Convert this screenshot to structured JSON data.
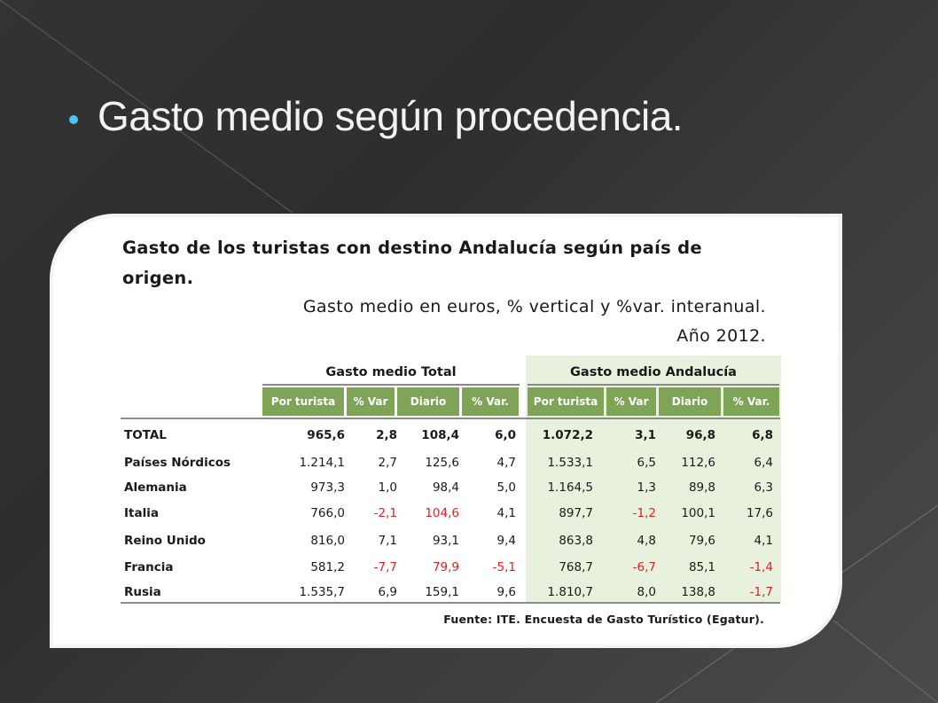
{
  "slide": {
    "bullet_text": "Gasto medio según procedencia.",
    "accent_color": "#4fc3f7"
  },
  "table": {
    "title": "Gasto de los turistas con destino Andalucía según país de origen.",
    "subtitle": "Gasto medio en euros, % vertical y %var. interanual.",
    "year": "Año 2012.",
    "groups": [
      "Gasto medio Total",
      "Gasto medio Andalucía"
    ],
    "columns": [
      "Por turista",
      "% Var",
      "Diario",
      "% Var.",
      "Por turista",
      "% Var",
      "Diario",
      "% Var."
    ],
    "rows": [
      {
        "label": "TOTAL",
        "values": [
          "965,6",
          "2,8",
          "108,4",
          "6,0",
          "1.072,2",
          "3,1",
          "96,8",
          "6,8"
        ]
      },
      {
        "label": "Países Nórdicos",
        "values": [
          "1.214,1",
          "2,7",
          "125,6",
          "4,7",
          "1.533,1",
          "6,5",
          "112,6",
          "6,4"
        ]
      },
      {
        "label": "Alemania",
        "values": [
          "973,3",
          "1,0",
          "98,4",
          "5,0",
          "1.164,5",
          "1,3",
          "89,8",
          "6,3"
        ]
      },
      {
        "label": "Italia",
        "values": [
          "766,0",
          "-2,1",
          "104,6",
          "4,1",
          "897,7",
          "-1,2",
          "100,1",
          "17,6"
        ]
      },
      {
        "label": "Reino Unido",
        "values": [
          "816,0",
          "7,1",
          "93,1",
          "9,4",
          "863,8",
          "4,8",
          "79,6",
          "4,1"
        ]
      },
      {
        "label": "Francia",
        "values": [
          "581,2",
          "-7,7",
          "79,9",
          "-5,1",
          "768,7",
          "-6,7",
          "85,1",
          "-1,4"
        ]
      },
      {
        "label": "Rusia",
        "values": [
          "1.535,7",
          "6,9",
          "159,1",
          "9,6",
          "1.810,7",
          "8,0",
          "138,8",
          "-1,7"
        ]
      }
    ],
    "red_cells": [
      [
        3,
        1
      ],
      [
        3,
        2
      ],
      [
        3,
        5
      ],
      [
        5,
        1
      ],
      [
        5,
        2
      ],
      [
        5,
        3
      ],
      [
        5,
        5
      ],
      [
        5,
        7
      ],
      [
        6,
        7
      ]
    ],
    "source": "Fuente: ITE. Encuesta de Gasto Turístico (Egatur).",
    "header_color": "#7fa357",
    "andalucia_bg": "#e8f1de",
    "negative_color": "#e02020"
  }
}
